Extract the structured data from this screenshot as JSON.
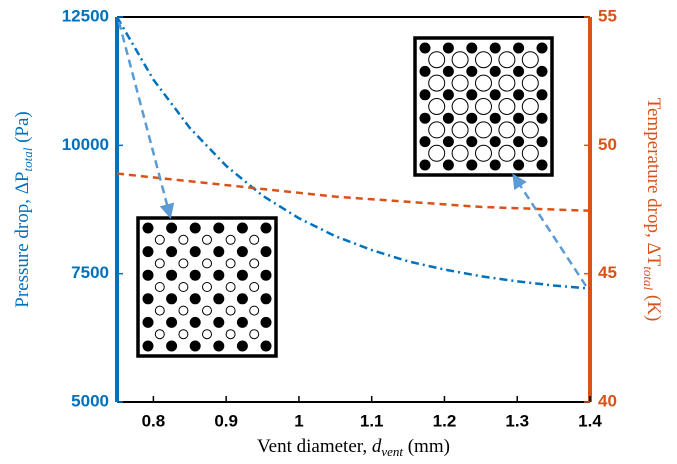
{
  "chart_data": {
    "type": "line",
    "x_label": "Vent diameter, ",
    "x_label_var": "d",
    "x_label_sub": "vent",
    "x_label_unit": " (mm)",
    "y_label": "Pressure drop, ΔP",
    "y_label_sub": "total",
    "y_label_unit": " (Pa)",
    "y2_label": "Temperature drop, ΔT",
    "y2_label_sub": "total",
    "y2_label_unit": " (K)",
    "x": [
      0.75,
      0.8,
      0.85,
      0.9,
      0.95,
      1.0,
      1.05,
      1.1,
      1.15,
      1.2,
      1.25,
      1.3,
      1.35,
      1.4
    ],
    "series": [
      {
        "color": "#0072BD",
        "style": "dashdot",
        "values": [
          12500,
          11280,
          10340,
          9600,
          9020,
          8580,
          8230,
          7960,
          7740,
          7580,
          7450,
          7350,
          7270,
          7210
        ]
      },
      {
        "color": "#D95319",
        "style": "dashed",
        "axis": "y2",
        "values": [
          48.9,
          48.75,
          48.6,
          48.45,
          48.3,
          48.15,
          48.0,
          47.9,
          47.8,
          47.7,
          47.6,
          47.55,
          47.5,
          47.45
        ]
      }
    ],
    "xlim": [
      0.75,
      1.4
    ],
    "xticks": [
      0.8,
      0.9,
      1,
      1.1,
      1.2,
      1.3,
      1.4
    ],
    "ylim": [
      5000,
      12500
    ],
    "yticks": [
      5000,
      7500,
      10000,
      12500
    ],
    "y2lim": [
      40,
      55
    ],
    "y2ticks": [
      40,
      45,
      50,
      55
    ],
    "y_color": "#0072BD",
    "y2_color": "#D95319"
  }
}
